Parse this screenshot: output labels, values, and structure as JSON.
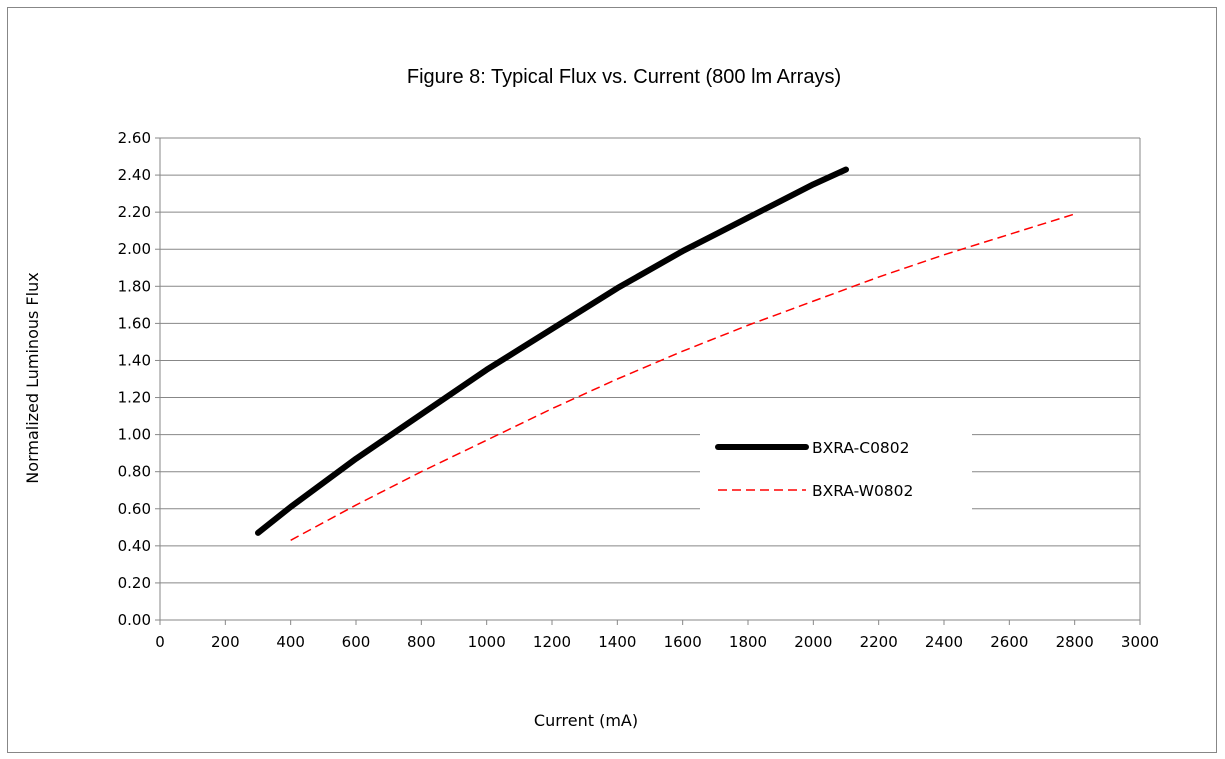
{
  "chart_data": {
    "type": "line",
    "title": "Figure 8:  Typical Flux vs. Current (800 lm Arrays)",
    "xlabel": "Current (mA)",
    "ylabel": "Normalized Luminous Flux",
    "xlim": [
      0,
      3000
    ],
    "ylim": [
      0,
      2.6
    ],
    "x_ticks": [
      0,
      200,
      400,
      600,
      800,
      1000,
      1200,
      1400,
      1600,
      1800,
      2000,
      2200,
      2400,
      2600,
      2800,
      3000
    ],
    "x_tick_labels": [
      "0",
      "200",
      "400",
      "600",
      "800",
      "1000",
      "1200",
      "1400",
      "1600",
      "1800",
      "2000",
      "2200",
      "2400",
      "2600",
      "2800",
      "3000"
    ],
    "y_ticks": [
      0,
      0.2,
      0.4,
      0.6,
      0.8,
      1.0,
      1.2,
      1.4,
      1.6,
      1.8,
      2.0,
      2.2,
      2.4,
      2.6
    ],
    "y_tick_labels": [
      "0.00",
      "0.20",
      "0.40",
      "0.60",
      "0.80",
      "1.00",
      "1.20",
      "1.40",
      "1.60",
      "1.80",
      "2.00",
      "2.20",
      "2.40",
      "2.60"
    ],
    "grid": "horizontal",
    "legend_position": "right-center",
    "series": [
      {
        "name": "BXRA-C0802",
        "color": "#000000",
        "style": "solid-thick",
        "x": [
          300,
          400,
          500,
          600,
          700,
          800,
          900,
          1000,
          1100,
          1200,
          1300,
          1400,
          1500,
          1600,
          1700,
          1800,
          1900,
          2000,
          2100
        ],
        "y": [
          0.47,
          0.61,
          0.74,
          0.87,
          0.99,
          1.11,
          1.23,
          1.35,
          1.46,
          1.57,
          1.68,
          1.79,
          1.89,
          1.99,
          2.08,
          2.17,
          2.26,
          2.35,
          2.43
        ]
      },
      {
        "name": "BXRA-W0802",
        "color": "#ff0000",
        "style": "dashed",
        "x": [
          400,
          600,
          800,
          1000,
          1200,
          1400,
          1600,
          1800,
          2000,
          2200,
          2400,
          2600,
          2800
        ],
        "y": [
          0.43,
          0.62,
          0.8,
          0.97,
          1.14,
          1.3,
          1.45,
          1.59,
          1.72,
          1.85,
          1.97,
          2.08,
          2.19
        ]
      }
    ]
  }
}
